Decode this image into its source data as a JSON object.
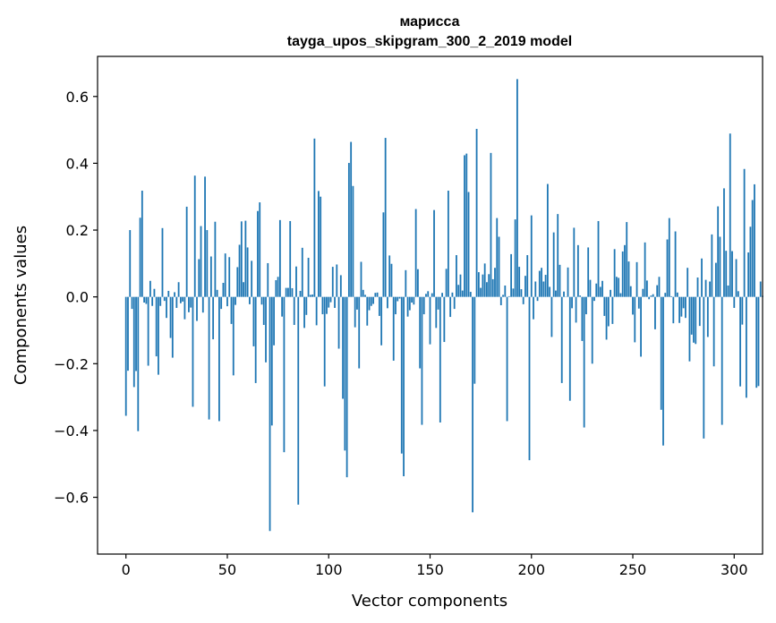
{
  "chart_data": {
    "type": "bar",
    "title": "марисса",
    "subtitle": "tayga_upos_skipgram_300_2_2019 model",
    "xlabel": "Vector components",
    "ylabel": "Components values",
    "xlim": [
      -14,
      314
    ],
    "ylim": [
      -0.77,
      0.72
    ],
    "x_ticks": [
      0,
      50,
      100,
      150,
      200,
      250,
      300
    ],
    "x_tick_labels": [
      "0",
      "50",
      "100",
      "150",
      "200",
      "250",
      "300"
    ],
    "y_ticks": [
      -0.6,
      -0.4,
      -0.2,
      0.0,
      0.2,
      0.4,
      0.6
    ],
    "y_tick_labels": [
      "−0.6",
      "−0.4",
      "−0.2",
      "0.0",
      "0.2",
      "0.4",
      "0.6"
    ],
    "bar_color": "#1f77b4",
    "values": [
      -0.356,
      -0.221,
      0.2,
      -0.036,
      -0.27,
      -0.222,
      -0.402,
      0.237,
      0.318,
      -0.017,
      -0.021,
      -0.206,
      0.048,
      -0.027,
      0.024,
      -0.178,
      -0.233,
      -0.027,
      0.206,
      -0.012,
      -0.063,
      0.018,
      -0.123,
      -0.182,
      0.014,
      -0.033,
      0.044,
      -0.019,
      -0.014,
      -0.067,
      0.27,
      -0.046,
      -0.032,
      -0.329,
      0.363,
      -0.072,
      0.113,
      0.212,
      -0.047,
      0.36,
      0.2,
      -0.367,
      0.121,
      -0.127,
      0.225,
      0.021,
      -0.372,
      -0.036,
      0.042,
      0.13,
      -0.028,
      0.119,
      -0.081,
      -0.235,
      -0.024,
      0.089,
      0.156,
      0.226,
      0.044,
      0.228,
      0.148,
      -0.022,
      0.108,
      -0.148,
      -0.258,
      0.257,
      0.283,
      -0.023,
      -0.084,
      -0.196,
      0.101,
      -0.701,
      -0.385,
      -0.145,
      0.05,
      0.06,
      0.23,
      -0.059,
      -0.465,
      0.027,
      0.027,
      0.227,
      0.026,
      -0.084,
      0.091,
      -0.622,
      0.018,
      0.147,
      -0.093,
      -0.054,
      0.117,
      0.006,
      0.007,
      0.474,
      -0.085,
      0.317,
      0.3,
      -0.052,
      -0.268,
      -0.051,
      -0.032,
      -0.016,
      0.09,
      -0.033,
      0.097,
      -0.155,
      0.065,
      -0.305,
      -0.46,
      -0.54,
      0.401,
      0.464,
      0.332,
      -0.091,
      -0.038,
      -0.214,
      0.105,
      0.021,
      0.006,
      -0.086,
      -0.04,
      -0.027,
      -0.021,
      0.012,
      0.013,
      -0.057,
      -0.145,
      0.253,
      0.476,
      -0.034,
      0.124,
      0.099,
      -0.191,
      -0.052,
      -0.013,
      -0.005,
      -0.469,
      -0.537,
      0.08,
      -0.059,
      -0.04,
      -0.017,
      -0.023,
      0.263,
      0.083,
      -0.214,
      -0.383,
      -0.052,
      0.009,
      0.017,
      -0.142,
      0.011,
      0.26,
      -0.093,
      -0.038,
      -0.376,
      0.012,
      -0.135,
      0.084,
      0.318,
      -0.06,
      0.013,
      -0.036,
      0.125,
      0.036,
      0.067,
      0.019,
      0.424,
      0.429,
      0.314,
      0.015,
      -0.645,
      -0.26,
      0.503,
      0.074,
      0.027,
      0.067,
      0.1,
      0.044,
      0.068,
      0.431,
      0.053,
      0.087,
      0.236,
      0.18,
      -0.025,
      0.006,
      0.034,
      -0.372,
      0.002,
      0.128,
      0.025,
      0.232,
      0.652,
      0.09,
      0.023,
      -0.022,
      0.063,
      0.125,
      -0.489,
      0.244,
      -0.067,
      0.046,
      -0.012,
      0.078,
      0.087,
      0.046,
      0.066,
      0.338,
      0.03,
      -0.12,
      0.193,
      0.019,
      0.248,
      0.096,
      -0.258,
      0.016,
      -0.001,
      0.088,
      -0.311,
      -0.034,
      0.207,
      -0.077,
      0.155,
      0.004,
      -0.132,
      -0.391,
      -0.052,
      0.148,
      0.051,
      -0.2,
      -0.012,
      0.04,
      0.227,
      0.03,
      0.048,
      -0.057,
      -0.128,
      -0.088,
      0.021,
      -0.081,
      0.143,
      0.06,
      0.057,
      0.011,
      0.136,
      0.155,
      0.224,
      0.106,
      0.032,
      -0.053,
      -0.136,
      0.104,
      -0.035,
      -0.179,
      0.024,
      0.163,
      0.049,
      -0.007,
      0.004,
      0.008,
      -0.097,
      0.035,
      0.06,
      -0.338,
      -0.445,
      0.012,
      0.172,
      0.236,
      0.002,
      -0.079,
      0.196,
      0.013,
      -0.078,
      -0.059,
      -0.034,
      -0.063,
      0.087,
      -0.193,
      -0.113,
      -0.137,
      -0.141,
      0.058,
      -0.087,
      0.115,
      -0.424,
      0.051,
      -0.12,
      0.046,
      0.187,
      -0.208,
      0.102,
      0.271,
      0.18,
      -0.383,
      0.325,
      0.138,
      0.034,
      0.489,
      0.137,
      -0.033,
      0.113,
      0.017,
      -0.268,
      -0.083,
      0.383,
      -0.302,
      0.133,
      0.21,
      0.29,
      0.337,
      -0.272,
      -0.267,
      0.046,
      0.003
    ]
  }
}
